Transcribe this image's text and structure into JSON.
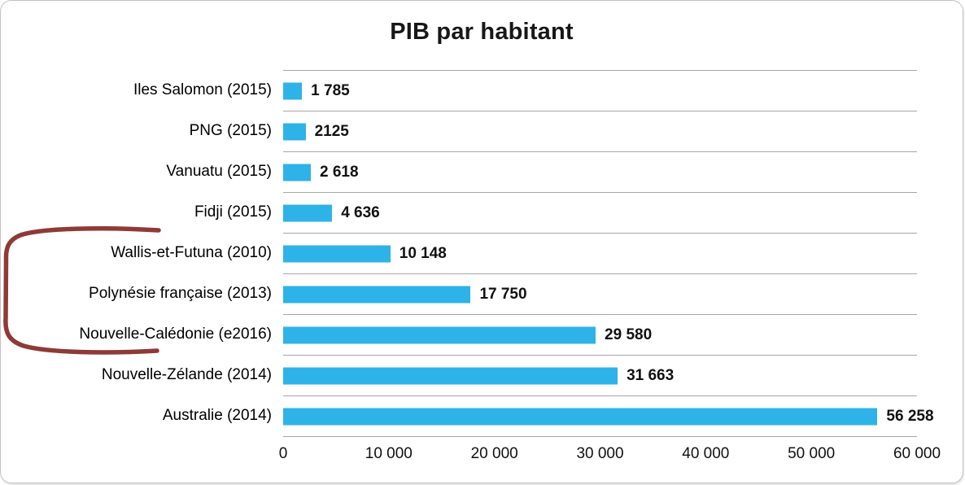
{
  "chart_data": {
    "type": "bar",
    "orientation": "horizontal",
    "title": "PIB par habitant",
    "categories": [
      "Iles Salomon (2015)",
      "PNG (2015)",
      "Vanuatu (2015)",
      "Fidji (2015)",
      "Wallis-et-Futuna (2010)",
      "Polynésie française (2013)",
      "Nouvelle-Calédonie (e2016)",
      "Nouvelle-Zélande (2014)",
      "Australie (2014)"
    ],
    "values": [
      1785,
      2125,
      2618,
      4636,
      10148,
      17750,
      29580,
      31663,
      56258
    ],
    "value_labels": [
      "1 785",
      "2125",
      "2 618",
      "4 636",
      "10 148",
      "17 750",
      "29 580",
      "31 663",
      "56 258"
    ],
    "xlim": [
      0,
      60000
    ],
    "x_ticks": [
      "0",
      "10 000",
      "20 000",
      "30 000",
      "40 000",
      "50 000",
      "60 000"
    ],
    "xlabel": "",
    "ylabel": "",
    "grid": "horizontal category separators",
    "legend": "none",
    "bar_color": "#2eb3e8",
    "annotation": {
      "description": "hand-drawn red bracket highlighting French territories",
      "color": "#8f3a36",
      "rows": [
        "Wallis-et-Futuna (2010)",
        "Polynésie française (2013)",
        "Nouvelle-Calédonie (e2016)"
      ]
    }
  }
}
